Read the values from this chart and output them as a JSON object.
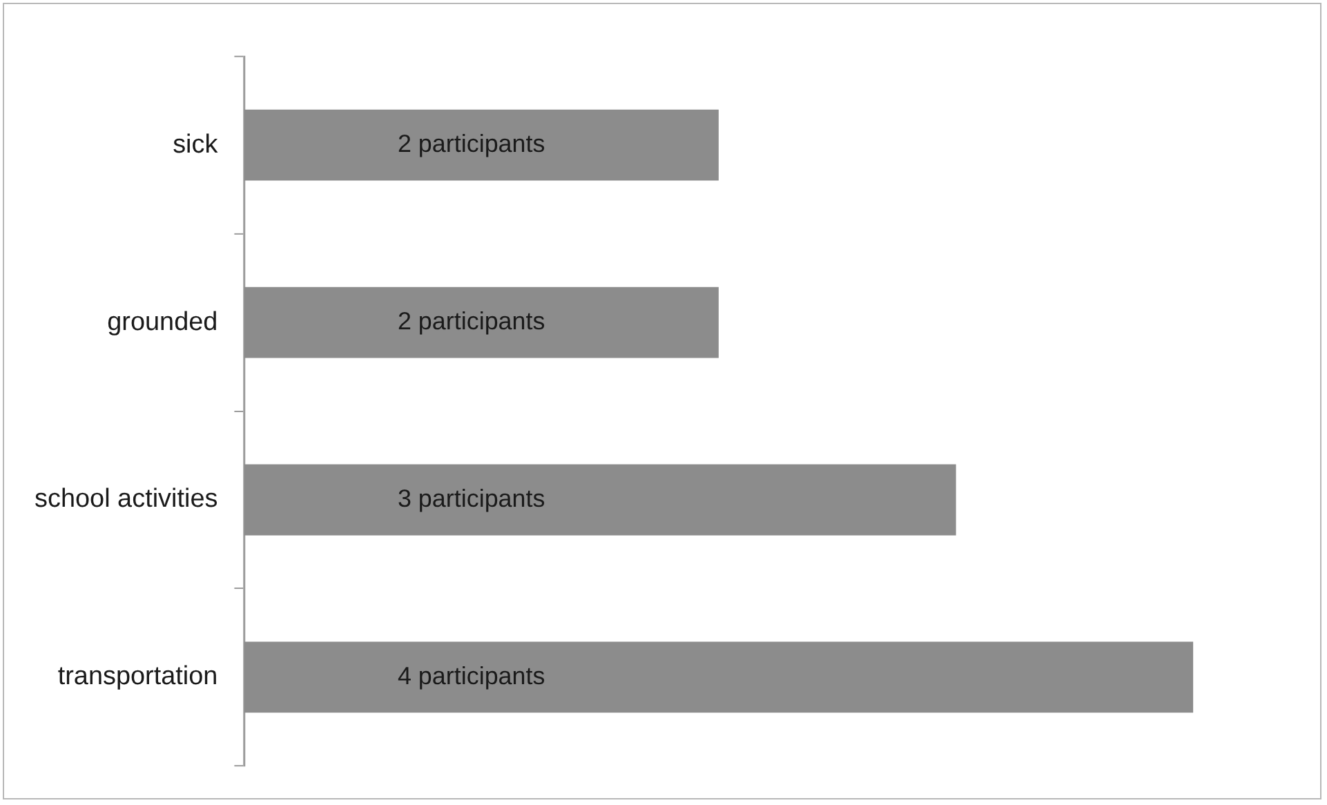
{
  "chart_data": {
    "type": "bar",
    "orientation": "horizontal",
    "categories": [
      "sick",
      "grounded",
      "school activities",
      "transportation"
    ],
    "values": [
      2,
      2,
      3,
      4
    ],
    "value_labels": [
      "2 participants",
      "2 participants",
      "3 participants",
      "4 participants"
    ],
    "color": "#8c8c8c",
    "xlim": [
      0,
      4
    ],
    "tick_labels": "y"
  }
}
